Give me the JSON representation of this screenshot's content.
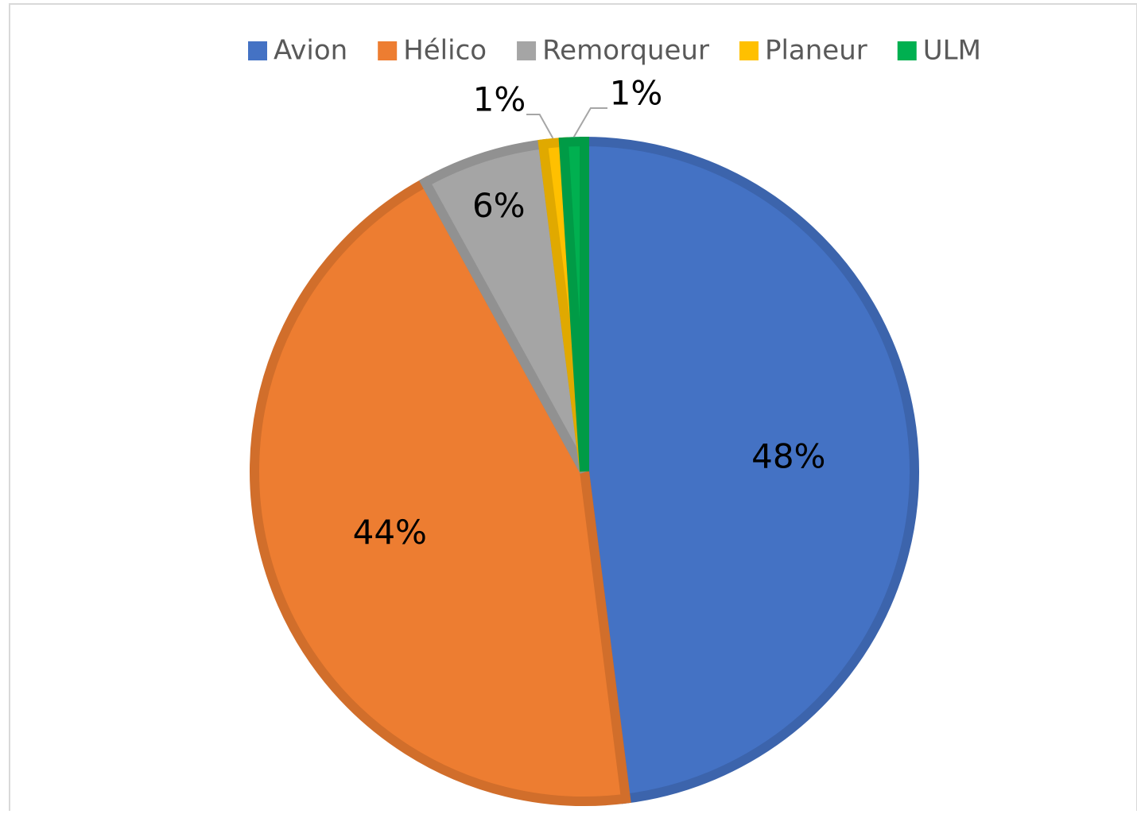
{
  "chart_data": {
    "type": "pie",
    "categories": [
      "Avion",
      "Hélico",
      "Remorqueur",
      "Planeur",
      "ULM"
    ],
    "values": [
      48,
      44,
      6,
      1,
      1
    ],
    "value_labels": [
      "48%",
      "44%",
      "6%",
      "1%",
      "1%"
    ],
    "colors": [
      "#4472c4",
      "#ed7d31",
      "#a5a5a5",
      "#ffc000",
      "#00b050"
    ],
    "legend": "top"
  }
}
